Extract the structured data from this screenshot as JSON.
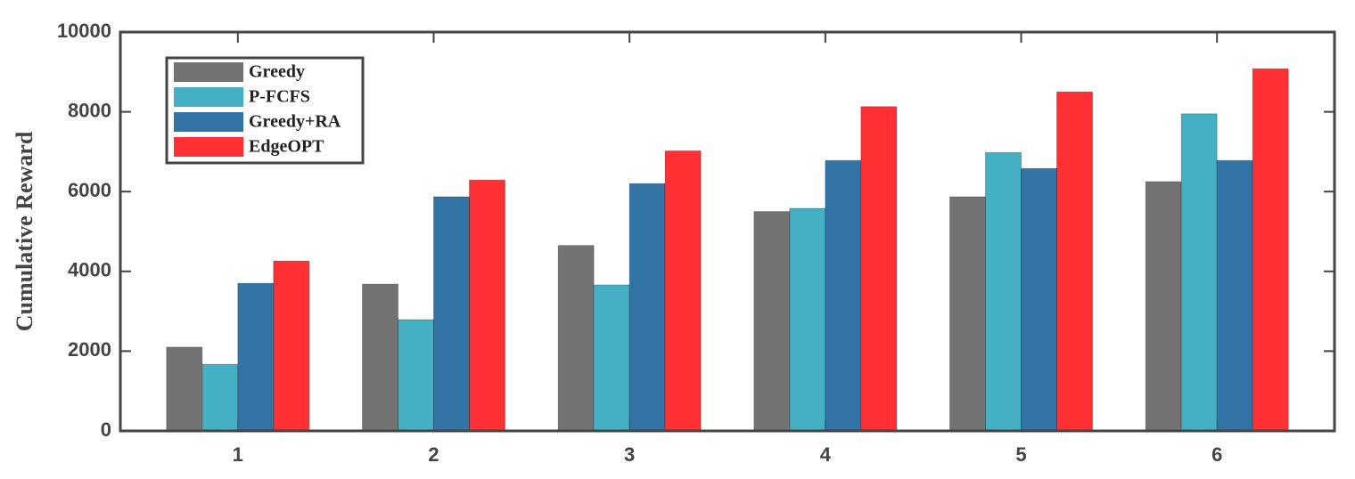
{
  "chart_data": {
    "type": "bar",
    "ylabel": "Cumulative Reward",
    "categories": [
      "1",
      "2",
      "3",
      "4",
      "5",
      "6"
    ],
    "series": [
      {
        "name": "Greedy",
        "color": "#737373",
        "values": [
          2100,
          3680,
          4650,
          5500,
          5870,
          6250
        ]
      },
      {
        "name": "P-FCFS",
        "color": "#45afc3",
        "values": [
          1670,
          2790,
          3660,
          5580,
          6980,
          7950
        ]
      },
      {
        "name": "Greedy+RA",
        "color": "#3174a5",
        "values": [
          3700,
          5870,
          6200,
          6780,
          6580,
          6780
        ]
      },
      {
        "name": "EdgeOPT",
        "color": "#ff3033",
        "values": [
          4260,
          6290,
          7020,
          8130,
          8500,
          9080
        ]
      }
    ],
    "ylim": [
      0,
      10000
    ],
    "yticks": [
      0,
      2000,
      4000,
      6000,
      8000,
      10000
    ],
    "legend": "upper-left"
  }
}
